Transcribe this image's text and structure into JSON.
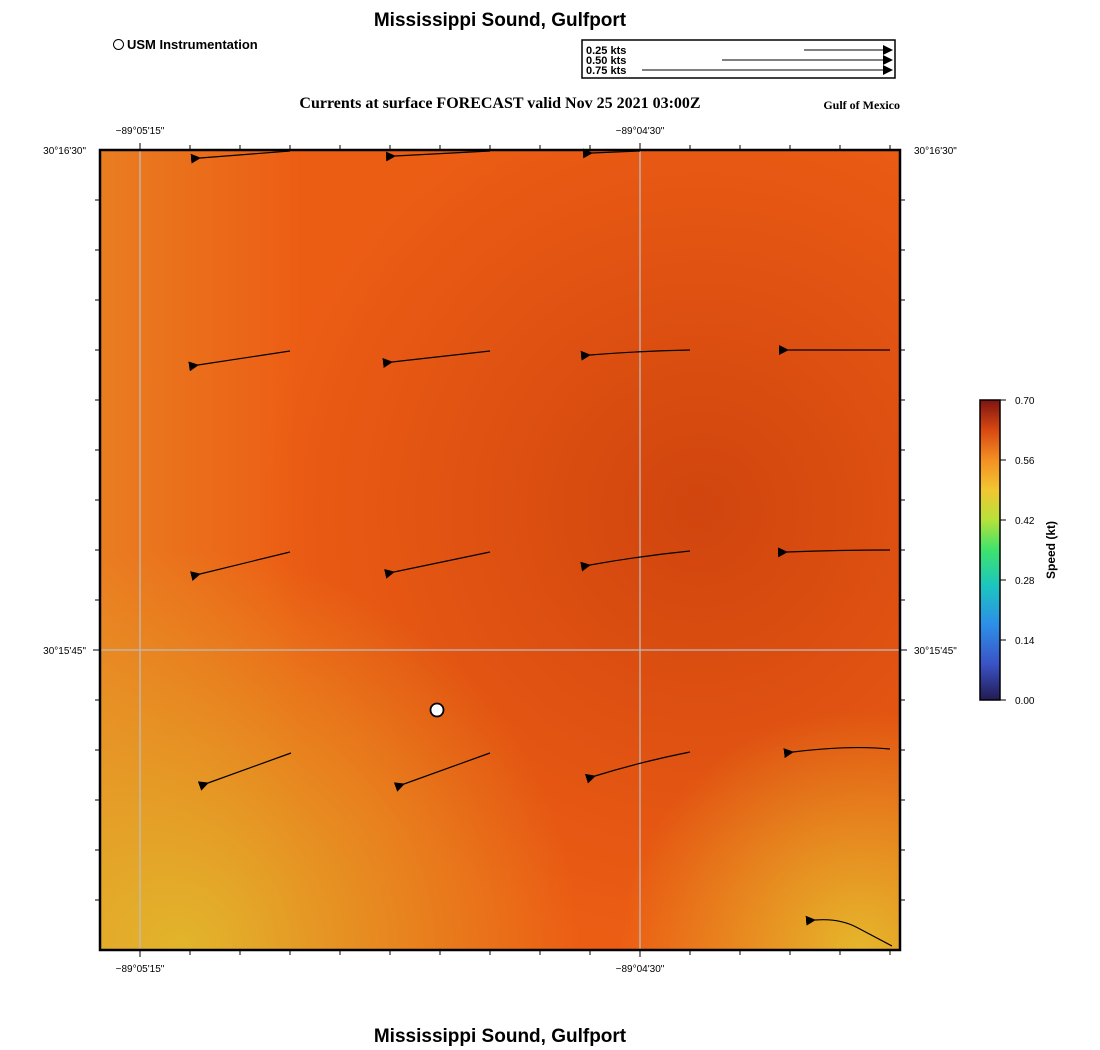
{
  "map": {
    "title": "Mississippi Sound, Gulfport",
    "bottom_title": "Mississippi Sound, Gulfport",
    "subtitle": "Currents at surface FORECAST valid Nov 25 2021 03:00Z",
    "region_label": "Gulf of Mexico",
    "station_legend": "USM Instrumentation",
    "vector_scale": [
      {
        "label": "0.25 kts",
        "speed": 0.25
      },
      {
        "label": "0.50 kts",
        "speed": 0.5
      },
      {
        "label": "0.75 kts",
        "speed": 0.75
      }
    ],
    "lon_labels": [
      "−89°05'15\"",
      "−89°04'30\""
    ],
    "lat_labels": [
      "30°16'30\"",
      "30°15'45\""
    ],
    "colorbar": {
      "label": "Speed (kt)",
      "min": 0.0,
      "max": 0.7,
      "ticks": [
        "0.70",
        "0.56",
        "0.42",
        "0.28",
        "0.14",
        "0.00"
      ]
    },
    "colors": {
      "field_high": "#d2460f",
      "field_mid": "#ee5e14",
      "field_low": "#e0b02c",
      "gridline": "#bdbdbd"
    },
    "station_icon": "white-circle-marker"
  }
}
